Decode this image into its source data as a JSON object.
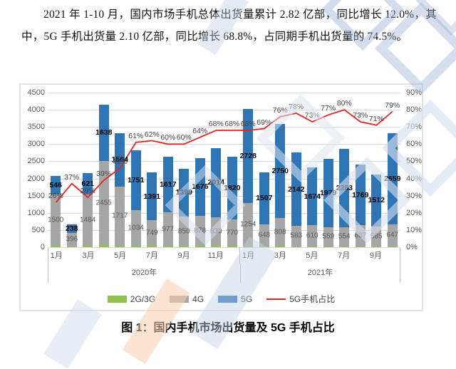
{
  "document": {
    "intro_paragraph": "2021 年 1-10 月，国内市场手机总体出货量累计 2.82 亿部，同比增长 12.0%，其中，5G 手机出货量 2.10 亿部，同比增长 68.8%，占同期手机出货量的 74.5%。",
    "figure_caption": "图 1：国内手机市场出货量及 5G 手机占比"
  },
  "colors": {
    "bar_2g3g": "#90c24f",
    "bar_4g": "#a6a6a6",
    "bar_5g": "#2e75b6",
    "line_5g_share": "#e8231e",
    "grid": "#d9d9d9",
    "axis_text": "#595959"
  },
  "chart_data": {
    "type": "bar",
    "subtype": "stacked-column-with-line",
    "title": "",
    "months": [
      "1月",
      "2月",
      "3月",
      "4月",
      "5月",
      "6月",
      "7月",
      "8月",
      "9月",
      "10月",
      "11月",
      "12月",
      "1月",
      "2月",
      "3月",
      "4月",
      "5月",
      "6月",
      "7月",
      "8月",
      "9月",
      "10月"
    ],
    "year_groups": [
      {
        "label": "2020年",
        "span": 12
      },
      {
        "label": "2021年",
        "span": 10
      }
    ],
    "visible_month_ticks": [
      "1月",
      "3月",
      "5月",
      "7月",
      "9月",
      "11月",
      "1月",
      "3月",
      "5月",
      "7月",
      "9月"
    ],
    "bar_series": [
      {
        "key": "2g3g",
        "name": "2G/3G",
        "color": "#90c24f",
        "values": [
          35,
          25,
          45,
          60,
          45,
          40,
          35,
          40,
          40,
          40,
          45,
          40,
          40,
          25,
          40,
          30,
          30,
          25,
          25,
          30,
          25,
          20
        ]
      },
      {
        "key": "4g",
        "name": "4G",
        "color": "#a6a6a6",
        "values": [
          1500,
          396,
          1484,
          2455,
          1717,
          1034,
          749,
          977,
          850,
          878,
          830,
          770,
          1254,
          648,
          808,
          583,
          610,
          559,
          554,
          607,
          585,
          647
        ]
      },
      {
        "key": "5g",
        "name": "5G",
        "color": "#2e75b6",
        "values": [
          546,
          238,
          621,
          1638,
          1564,
          1751,
          1391,
          1617,
          1399,
          1676,
          2014,
          1820,
          2728,
          1507,
          2750,
          2142,
          1674,
          1979,
          2283,
          1769,
          1512,
          2659
        ]
      }
    ],
    "line_series": {
      "key": "5g-share",
      "name": "5G手机占比",
      "color": "#e8231e",
      "values_percent": [
        26,
        37,
        29,
        39,
        46,
        61,
        62,
        60,
        60,
        64,
        68,
        68,
        68,
        69,
        76,
        78,
        73,
        77,
        80,
        73,
        71,
        79
      ],
      "labels": [
        "26%",
        "37%",
        "29%",
        "39%",
        "46%",
        "61%",
        "62%",
        "60%",
        "60%",
        "64%",
        "68%",
        "68%",
        "68%",
        "69%",
        "76%",
        "78%",
        "73%",
        "77%",
        "80%",
        "73%",
        "71%",
        "79%"
      ]
    },
    "left_axis": {
      "min": 0,
      "max": 4500,
      "step": 500,
      "ticks": [
        "0",
        "500",
        "1000",
        "1500",
        "2000",
        "2500",
        "3000",
        "3500",
        "4000",
        "4500"
      ]
    },
    "right_axis": {
      "min": 0,
      "max": 90,
      "step": 10,
      "unit": "%",
      "ticks": [
        "0%",
        "10%",
        "20%",
        "30%",
        "40%",
        "50%",
        "60%",
        "70%",
        "80%",
        "90%"
      ]
    },
    "legend": [
      {
        "key": "2g3g",
        "label": "2G/3G",
        "type": "box",
        "color": "#90c24f"
      },
      {
        "key": "4g",
        "label": "4G",
        "type": "box",
        "color": "#a6a6a6"
      },
      {
        "key": "5g",
        "label": "5G",
        "type": "box",
        "color": "#2e75b6"
      },
      {
        "key": "5g-share",
        "label": "5G手机占比",
        "type": "line",
        "color": "#e8231e"
      }
    ]
  }
}
